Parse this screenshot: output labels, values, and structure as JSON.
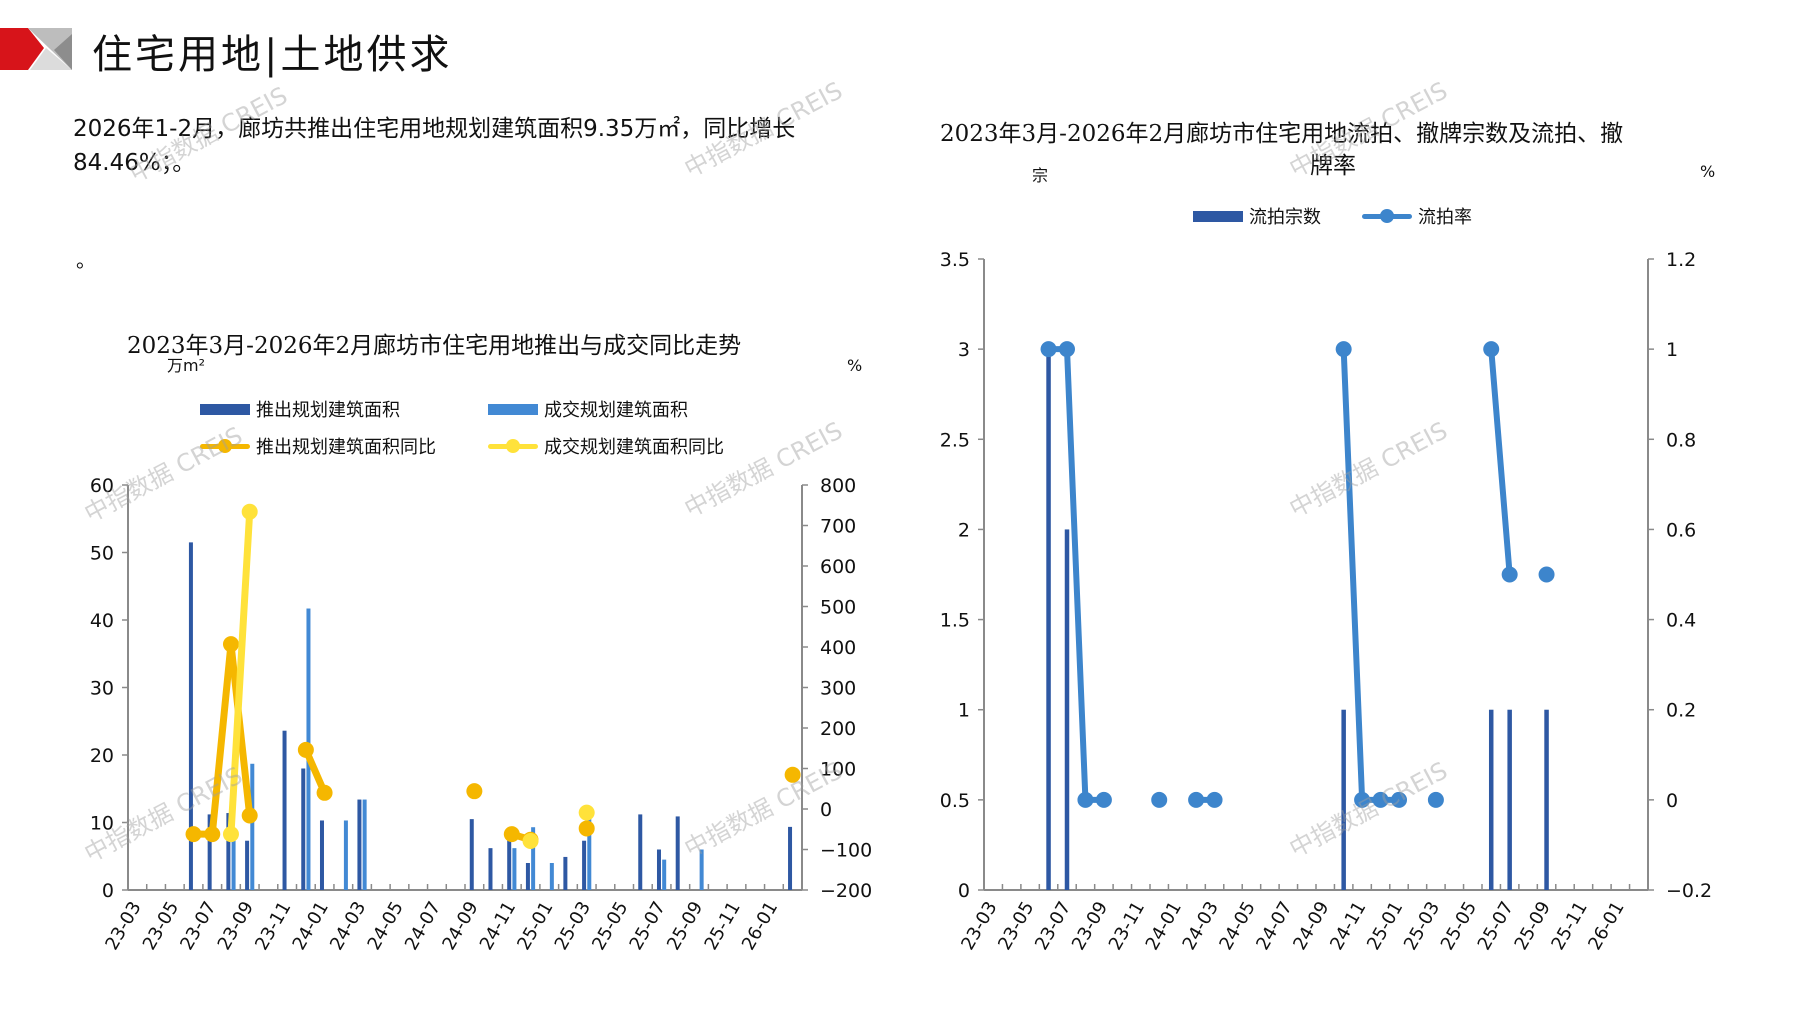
{
  "header": {
    "title": "住宅用地|土地供求"
  },
  "intro": {
    "paragraph": "2026年1-2月，廊坊共推出住宅用地规划建筑面积9.35万㎡，同比增长84.46%；。",
    "trailing": "。"
  },
  "watermark": "中指数据 CREIS",
  "colors": {
    "push_bar": "#2e58a3",
    "deal_bar": "#4289d4",
    "push_yoy": "#f5b700",
    "deal_yoy": "#ffe23a",
    "count_bar": "#2e58a3",
    "rate_line": "#3d85cc",
    "logo_red": "#d7141a",
    "logo_gray": "#a8a8a8"
  },
  "chart_data": [
    {
      "type": "bar+line",
      "title": "2023年3月-2026年2月廊坊市住宅用地推出与成交同比走势",
      "ylabel_left": "万m²",
      "ylabel_right": "%",
      "ylim_left": [
        0,
        60
      ],
      "yticks_left": [
        "0",
        "10",
        "20",
        "30",
        "40",
        "50",
        "60"
      ],
      "ylim_right": [
        -200,
        800
      ],
      "yticks_right": [
        "-200",
        "-100",
        "0",
        "100",
        "200",
        "300",
        "400",
        "500",
        "600",
        "700",
        "800"
      ],
      "grid": false,
      "legend_position": "top",
      "categories": [
        "23-03",
        "23-04",
        "23-05",
        "23-06",
        "23-07",
        "23-08",
        "23-09",
        "23-10",
        "23-11",
        "23-12",
        "24-01",
        "24-02",
        "24-03",
        "24-04",
        "24-05",
        "24-06",
        "24-07",
        "24-08",
        "24-09",
        "24-10",
        "24-11",
        "24-12",
        "25-01",
        "25-02",
        "25-03",
        "25-04",
        "25-05",
        "25-06",
        "25-07",
        "25-08",
        "25-09",
        "25-10",
        "25-11",
        "25-12",
        "26-01",
        "26-02"
      ],
      "series": [
        {
          "name": "推出规划建筑面积",
          "kind": "bar",
          "axis": "left",
          "values": [
            null,
            null,
            null,
            51.5,
            11.2,
            11.4,
            7.3,
            null,
            23.6,
            18.0,
            10.3,
            null,
            13.4,
            null,
            null,
            null,
            null,
            null,
            10.5,
            6.2,
            9.1,
            4.0,
            null,
            4.9,
            7.3,
            null,
            null,
            11.2,
            6.0,
            10.9,
            null,
            null,
            null,
            null,
            null,
            9.35
          ]
        },
        {
          "name": "成交规划建筑面积",
          "kind": "bar",
          "axis": "left",
          "values": [
            null,
            null,
            null,
            null,
            null,
            7.5,
            18.7,
            null,
            null,
            41.7,
            null,
            10.3,
            13.4,
            null,
            null,
            null,
            null,
            null,
            null,
            null,
            6.2,
            9.3,
            4.0,
            null,
            10.6,
            null,
            null,
            null,
            4.5,
            null,
            6.0,
            null,
            null,
            null,
            null,
            null
          ]
        },
        {
          "name": "推出规划建筑面积同比",
          "kind": "line",
          "axis": "right",
          "values": [
            null,
            null,
            null,
            -62,
            -62,
            407,
            -16,
            null,
            null,
            146,
            40,
            null,
            null,
            null,
            null,
            null,
            null,
            null,
            44,
            null,
            -62,
            -76,
            null,
            null,
            -48,
            null,
            null,
            null,
            null,
            null,
            null,
            null,
            null,
            null,
            null,
            84.46
          ]
        },
        {
          "name": "成交规划建筑面积同比",
          "kind": "line",
          "axis": "right",
          "values": [
            null,
            null,
            null,
            null,
            null,
            -62,
            734,
            null,
            null,
            null,
            null,
            null,
            null,
            null,
            null,
            null,
            null,
            null,
            null,
            null,
            null,
            -79,
            null,
            null,
            -9,
            null,
            null,
            null,
            null,
            null,
            null,
            null,
            null,
            null,
            null,
            null
          ]
        }
      ]
    },
    {
      "type": "bar+line",
      "title_line1": "2023年3月-2026年2月廊坊市住宅用地流拍、撤牌宗数及流拍、撤",
      "title_line2": "牌率",
      "ylabel_left": "宗",
      "ylabel_right": "%",
      "ylim_left": [
        0,
        3.5
      ],
      "yticks_left": [
        "0",
        "0.5",
        "1",
        "1.5",
        "2",
        "2.5",
        "3",
        "3.5"
      ],
      "ylim_right": [
        -0.2,
        1.2
      ],
      "yticks_right": [
        "-0.2",
        "0",
        "0.2",
        "0.4",
        "0.6",
        "0.8",
        "1",
        "1.2"
      ],
      "grid": false,
      "legend_position": "top",
      "categories": [
        "23-03",
        "23-04",
        "23-05",
        "23-06",
        "23-07",
        "23-08",
        "23-09",
        "23-10",
        "23-11",
        "23-12",
        "24-01",
        "24-02",
        "24-03",
        "24-04",
        "24-05",
        "24-06",
        "24-07",
        "24-08",
        "24-09",
        "24-10",
        "24-11",
        "24-12",
        "25-01",
        "25-02",
        "25-03",
        "25-04",
        "25-05",
        "25-06",
        "25-07",
        "25-08",
        "25-09",
        "25-10",
        "25-11",
        "25-12",
        "26-01",
        "26-02"
      ],
      "series": [
        {
          "name": "流拍宗数",
          "kind": "bar",
          "axis": "left",
          "values": [
            null,
            null,
            null,
            3,
            2,
            null,
            null,
            null,
            null,
            null,
            null,
            null,
            null,
            null,
            null,
            null,
            null,
            null,
            null,
            1,
            null,
            null,
            null,
            null,
            null,
            null,
            null,
            1,
            1,
            null,
            1,
            null,
            null,
            null,
            null,
            null
          ]
        },
        {
          "name": "流拍率",
          "kind": "line",
          "axis": "right",
          "values": [
            null,
            null,
            null,
            1,
            1,
            0,
            0,
            null,
            null,
            0,
            null,
            0,
            0,
            null,
            null,
            null,
            null,
            null,
            null,
            1,
            0,
            0,
            0,
            null,
            0,
            null,
            null,
            1,
            0.5,
            null,
            0.5,
            null,
            null,
            null,
            null,
            null
          ]
        }
      ]
    }
  ]
}
